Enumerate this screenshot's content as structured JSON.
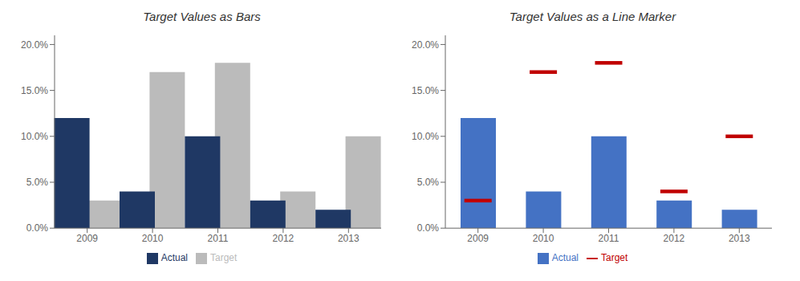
{
  "chart_data": [
    {
      "type": "bar",
      "title": "Target Values as Bars",
      "categories": [
        "2009",
        "2010",
        "2011",
        "2012",
        "2013"
      ],
      "series": [
        {
          "name": "Target",
          "type": "bar",
          "color": "#BBBBBB",
          "values": [
            0.03,
            0.17,
            0.18,
            0.04,
            0.1
          ]
        },
        {
          "name": "Actual",
          "type": "bar",
          "color": "#1F3864",
          "values": [
            0.12,
            0.04,
            0.1,
            0.03,
            0.02
          ]
        }
      ],
      "ylim": [
        0,
        0.21
      ],
      "yticks": [
        {
          "value": 0.0,
          "label": "0.0%"
        },
        {
          "value": 0.05,
          "label": "5.0%"
        },
        {
          "value": 0.1,
          "label": "10.0%"
        },
        {
          "value": 0.15,
          "label": "15.0%"
        },
        {
          "value": 0.2,
          "label": "20.0%"
        }
      ],
      "grid": false,
      "legend": "bottom"
    },
    {
      "type": "bar",
      "title": "Target Values as a Line Marker",
      "categories": [
        "2009",
        "2010",
        "2011",
        "2012",
        "2013"
      ],
      "series": [
        {
          "name": "Actual",
          "type": "bar",
          "color": "#4472C4",
          "values": [
            0.12,
            0.04,
            0.1,
            0.03,
            0.02
          ]
        },
        {
          "name": "Target",
          "type": "scatter",
          "marker": "dash",
          "color": "#C00000",
          "values": [
            0.03,
            0.17,
            0.18,
            0.04,
            0.1
          ]
        }
      ],
      "ylim": [
        0,
        0.21
      ],
      "yticks": [
        {
          "value": 0.0,
          "label": "0.0%"
        },
        {
          "value": 0.05,
          "label": "5.0%"
        },
        {
          "value": 0.1,
          "label": "10.0%"
        },
        {
          "value": 0.15,
          "label": "15.0%"
        },
        {
          "value": 0.2,
          "label": "20.0%"
        }
      ],
      "grid": false,
      "legend": "bottom"
    }
  ]
}
